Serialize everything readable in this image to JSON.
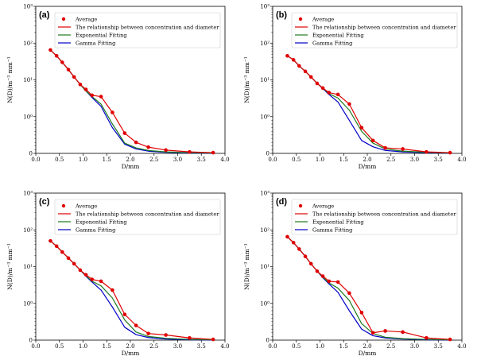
{
  "figure": {
    "legend_entries": [
      {
        "label": "Average",
        "color": "#e00000",
        "style": "markers"
      },
      {
        "label": "The relationship between concentration and diameter",
        "color": "#e00000",
        "style": "line"
      },
      {
        "label": "Exponential Fitting",
        "color": "#1f7a1f",
        "style": "line"
      },
      {
        "label": "Gamma Fitting",
        "color": "#0000c8",
        "style": "line"
      }
    ]
  },
  "chart_data": [
    {
      "type": "line",
      "panel_label": "(a)",
      "xlabel": "D/mm",
      "ylabel": "N(D)/m⁻³ mm⁻¹",
      "xlim": [
        0.0,
        4.0
      ],
      "ylim": [
        0,
        1000
      ],
      "yscale": "symlog",
      "xticks": [
        "0.0",
        "0.5",
        "1.0",
        "1.5",
        "2.0",
        "2.5",
        "3.0",
        "3.5",
        "4.0"
      ],
      "yticks": [
        {
          "value": 0,
          "label": "0"
        },
        {
          "value": 1,
          "label": "10⁰"
        },
        {
          "value": 10,
          "label": "10¹"
        },
        {
          "value": 100,
          "label": "10²"
        },
        {
          "value": 1000,
          "label": "10³"
        }
      ],
      "x": [
        0.31,
        0.44,
        0.56,
        0.69,
        0.81,
        0.94,
        1.06,
        1.19,
        1.38,
        1.62,
        1.88,
        2.12,
        2.38,
        2.75,
        3.25,
        3.75
      ],
      "average": [
        65,
        45,
        30,
        19,
        12,
        7.5,
        5.5,
        3.8,
        3.5,
        1.3,
        0.55,
        0.3,
        0.17,
        0.09,
        0.04,
        0.02
      ],
      "exponential": [
        65,
        45,
        30,
        19,
        12,
        7.5,
        5.0,
        3.5,
        2.2,
        0.8,
        0.28,
        0.15,
        0.08,
        0.04,
        0.02,
        0.01
      ],
      "gamma": [
        65,
        45,
        30,
        19,
        12,
        7.5,
        5.0,
        3.3,
        1.9,
        0.7,
        0.25,
        0.12,
        0.06,
        0.03,
        0.01,
        0.005
      ]
    },
    {
      "type": "line",
      "panel_label": "(b)",
      "xlabel": "D/mm",
      "ylabel": "N(D)/m⁻³ mm⁻¹",
      "xlim": [
        0.0,
        4.0
      ],
      "ylim": [
        0,
        1000
      ],
      "yscale": "symlog",
      "xticks": [
        "0.0",
        "0.5",
        "1.0",
        "1.5",
        "2.0",
        "2.5",
        "3.0",
        "3.5",
        "4.0"
      ],
      "yticks": [
        {
          "value": 0,
          "label": "0"
        },
        {
          "value": 1,
          "label": "10⁰"
        },
        {
          "value": 10,
          "label": "10¹"
        },
        {
          "value": 100,
          "label": "10²"
        },
        {
          "value": 1000,
          "label": "10³"
        }
      ],
      "x": [
        0.31,
        0.44,
        0.56,
        0.69,
        0.81,
        0.94,
        1.06,
        1.19,
        1.38,
        1.62,
        1.88,
        2.12,
        2.38,
        2.75,
        3.25,
        3.75
      ],
      "average": [
        45,
        35,
        24,
        17,
        12,
        8,
        6,
        4.5,
        4.0,
        2.2,
        0.7,
        0.35,
        0.15,
        0.12,
        0.04,
        0.02
      ],
      "exponential": [
        45,
        35,
        24,
        17,
        12,
        8,
        6,
        4.2,
        3.2,
        1.5,
        0.6,
        0.28,
        0.12,
        0.06,
        0.03,
        0.01
      ],
      "gamma": [
        45,
        35,
        24,
        17,
        12,
        8,
        5.8,
        4.0,
        2.5,
        0.9,
        0.35,
        0.18,
        0.08,
        0.04,
        0.015,
        0.005
      ]
    },
    {
      "type": "line",
      "panel_label": "(c)",
      "xlabel": "D/mm",
      "ylabel": "N(D)/m⁻³ mm⁻¹",
      "xlim": [
        0.0,
        4.0
      ],
      "ylim": [
        0,
        1000
      ],
      "yscale": "symlog",
      "xticks": [
        "0.0",
        "0.5",
        "1.0",
        "1.5",
        "2.0",
        "2.5",
        "3.0",
        "3.5",
        "4.0"
      ],
      "yticks": [
        {
          "value": 0,
          "label": "0"
        },
        {
          "value": 1,
          "label": "10⁰"
        },
        {
          "value": 10,
          "label": "10¹"
        },
        {
          "value": 100,
          "label": "10²"
        },
        {
          "value": 1000,
          "label": "10³"
        }
      ],
      "x": [
        0.31,
        0.44,
        0.56,
        0.69,
        0.81,
        0.94,
        1.06,
        1.19,
        1.38,
        1.62,
        1.88,
        2.12,
        2.38,
        2.75,
        3.25,
        3.75
      ],
      "average": [
        50,
        36,
        25,
        17,
        12,
        8,
        6,
        4.5,
        4.0,
        2.3,
        0.7,
        0.4,
        0.18,
        0.14,
        0.06,
        0.02
      ],
      "exponential": [
        50,
        36,
        25,
        17,
        12,
        8,
        5.7,
        4.0,
        3.0,
        1.4,
        0.55,
        0.22,
        0.1,
        0.05,
        0.02,
        0.01
      ],
      "gamma": [
        50,
        36,
        25,
        17,
        12,
        8,
        5.5,
        3.8,
        2.3,
        0.9,
        0.35,
        0.15,
        0.07,
        0.03,
        0.01,
        0.005
      ]
    },
    {
      "type": "line",
      "panel_label": "(d)",
      "xlabel": "D/mm",
      "ylabel": "N(D)/m⁻³ mm⁻¹",
      "xlim": [
        0.0,
        4.0
      ],
      "ylim": [
        0,
        1000
      ],
      "yscale": "symlog",
      "xticks": [
        "0.0",
        "0.5",
        "1.0",
        "1.5",
        "2.0",
        "2.5",
        "3.0",
        "3.5",
        "4.0"
      ],
      "yticks": [
        {
          "value": 0,
          "label": "0"
        },
        {
          "value": 1,
          "label": "10⁰"
        },
        {
          "value": 10,
          "label": "10¹"
        },
        {
          "value": 100,
          "label": "10²"
        },
        {
          "value": 1000,
          "label": "10³"
        }
      ],
      "x": [
        0.31,
        0.44,
        0.56,
        0.69,
        0.81,
        0.94,
        1.06,
        1.19,
        1.38,
        1.62,
        1.88,
        2.12,
        2.38,
        2.75,
        3.25,
        3.75
      ],
      "average": [
        65,
        45,
        30,
        19,
        12,
        7.5,
        5.5,
        4.0,
        3.8,
        1.9,
        0.75,
        0.2,
        0.25,
        0.22,
        0.06,
        0.02
      ],
      "exponential": [
        65,
        45,
        30,
        19,
        12,
        7.5,
        5.2,
        3.6,
        2.6,
        1.2,
        0.45,
        0.18,
        0.08,
        0.04,
        0.02,
        0.01
      ],
      "gamma": [
        65,
        45,
        30,
        19,
        12,
        7.5,
        5.0,
        3.4,
        2.0,
        0.8,
        0.3,
        0.12,
        0.06,
        0.03,
        0.01,
        0.005
      ]
    }
  ]
}
